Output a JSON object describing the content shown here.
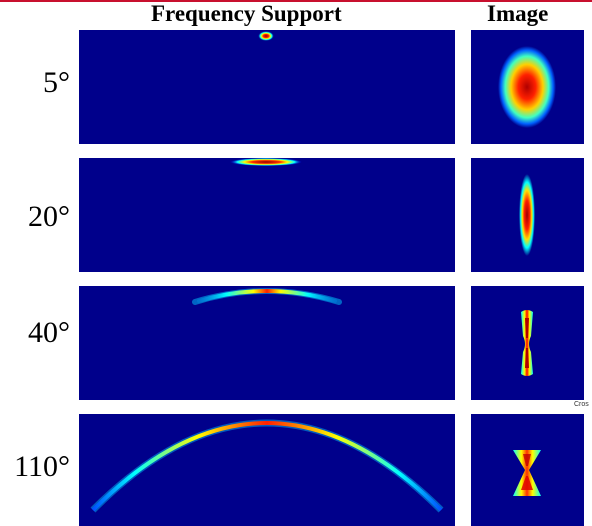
{
  "headers": {
    "frequency_support": "Frequency Support",
    "image": "Image"
  },
  "rows": [
    {
      "angle": "5°"
    },
    {
      "angle": "20°"
    },
    {
      "angle": "40°"
    },
    {
      "angle": "110°"
    }
  ],
  "cropped_text": "Cros",
  "colors": {
    "background": "#00008b",
    "accent_rule": "#c8102e",
    "colormap": [
      "#00008b",
      "#0000ff",
      "#00ffff",
      "#ffff00",
      "#ff0000",
      "#8b0000"
    ]
  }
}
